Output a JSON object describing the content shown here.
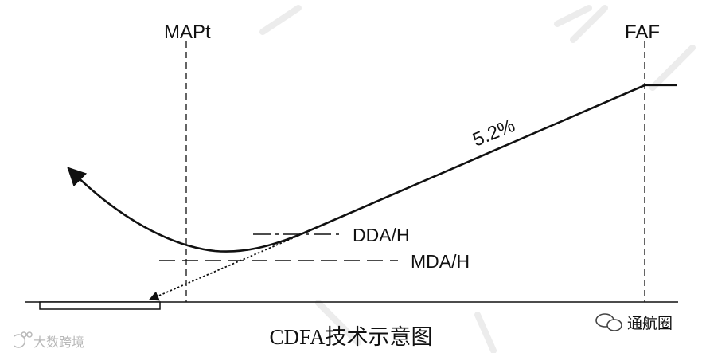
{
  "diagram": {
    "caption": "CDFA技术示意图",
    "labels": {
      "mapt": "MAPt",
      "faf": "FAF",
      "gradient": "5.2%",
      "dda": "DDA/H",
      "mda": "MDA/H"
    }
  },
  "watermarks": {
    "left": "大数跨境",
    "right": "通航圈"
  },
  "colors": {
    "ink": "#111111",
    "watermark": "#b9b9b9",
    "background": "#ffffff"
  }
}
